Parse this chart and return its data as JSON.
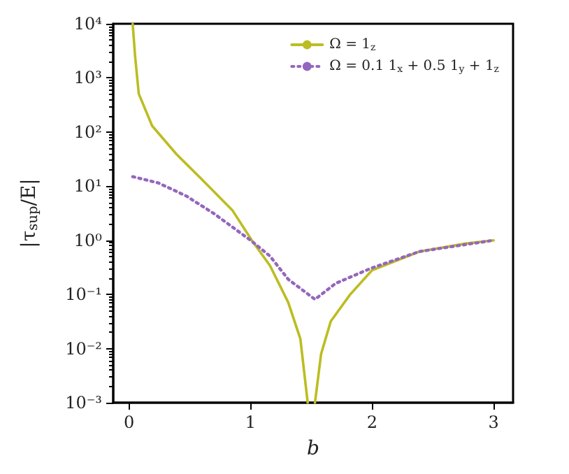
{
  "chart_data": {
    "type": "line",
    "xlabel": "b",
    "ylabel": "|τ$_{sup}$/E|",
    "xlim": [
      -0.13,
      3.16
    ],
    "xticks": [
      0,
      1,
      2,
      3
    ],
    "ylim": [
      0.001,
      10000
    ],
    "yticks": [
      {
        "value": 0.001,
        "label": "10⁻³"
      },
      {
        "value": 0.01,
        "label": "10⁻²"
      },
      {
        "value": 0.1,
        "label": "10⁻¹"
      },
      {
        "value": 1,
        "label": "10⁰"
      },
      {
        "value": 10,
        "label": "10¹"
      },
      {
        "value": 100,
        "label": "10²"
      },
      {
        "value": 1000,
        "label": "10³"
      },
      {
        "value": 10000,
        "label": "10⁴"
      }
    ],
    "log": "y",
    "grid": false,
    "legend": "top right",
    "marker": "none",
    "series": [
      {
        "name": "Ω = 1$_{z}$",
        "color": "#bcbd22",
        "line_style": "solid",
        "x": [
          0.03,
          0.05,
          0.08,
          0.19,
          0.39,
          0.62,
          0.85,
          1.01,
          1.16,
          1.31,
          1.41,
          1.47,
          1.5,
          1.53,
          1.58,
          1.66,
          1.82,
          2.0,
          2.39,
          2.77,
          3.0
        ],
        "values": [
          10000,
          2500,
          510,
          130,
          39,
          12,
          3.6,
          1.0,
          0.34,
          0.071,
          0.015,
          0.001,
          null,
          0.001,
          0.0079,
          0.032,
          0.1,
          0.28,
          0.62,
          0.87,
          1.0
        ]
      },
      {
        "name": "Ω = 0.1 1$_{x}$ + 0.5 1$_{y}$ + 1$_{z}$",
        "color": "#9467bd",
        "line_style": "dotted",
        "x": [
          0.03,
          0.24,
          0.47,
          0.7,
          1.0,
          1.16,
          1.31,
          1.53,
          1.7,
          2.0,
          2.39,
          3.0
        ],
        "values": [
          15,
          11.5,
          6.6,
          3.1,
          1.0,
          0.51,
          0.19,
          0.081,
          0.16,
          0.31,
          0.62,
          1.0
        ]
      }
    ]
  }
}
